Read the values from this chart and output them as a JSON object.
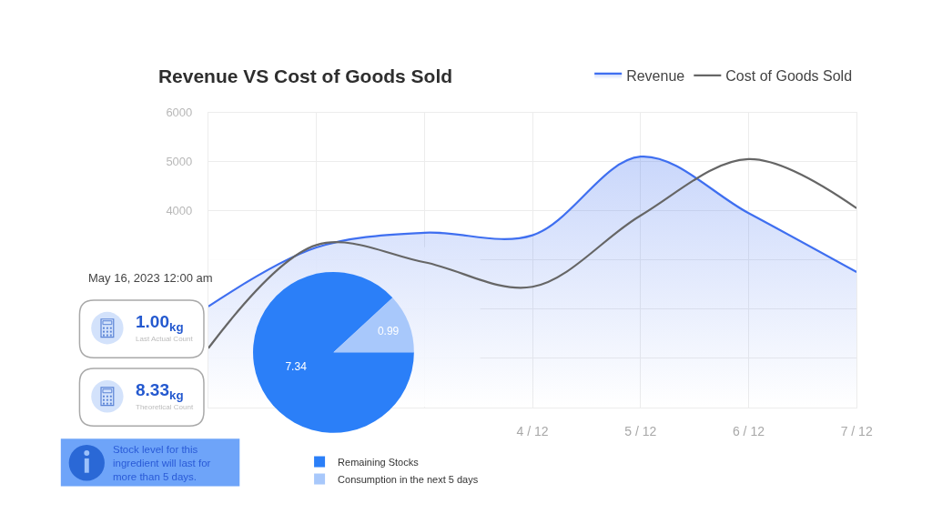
{
  "chart_data": [
    {
      "type": "line",
      "title": "Revenue VS Cost of Goods Sold",
      "categories": [
        null,
        null,
        null,
        "4 / 12",
        "5 / 12",
        "6 / 12",
        "7 / 12"
      ],
      "series": [
        {
          "name": "Revenue",
          "type": "area",
          "color": "#3f6ff0",
          "values": [
            2050,
            3250,
            3550,
            3500,
            5100,
            3950,
            2750
          ]
        },
        {
          "name": "Cost of Goods Sold",
          "type": "line",
          "color": "#666666",
          "values": [
            1200,
            3300,
            2950,
            2450,
            3900,
            5050,
            4050
          ]
        }
      ],
      "ylim": [
        0,
        6000
      ],
      "yticks": [
        {
          "value": 0,
          "label": null
        },
        {
          "value": 1000,
          "label": null
        },
        {
          "value": 2000,
          "label": null
        },
        {
          "value": 3000,
          "label": null
        },
        4000,
        5000,
        6000
      ],
      "grid": true,
      "legend": "top right"
    },
    {
      "type": "pie",
      "categories": [
        "Remaining Stocks",
        "Consumption in the next 5 days"
      ],
      "values": [
        7.34,
        0.99
      ],
      "colors": [
        "#2b7ff8",
        "#a8c8fb"
      ],
      "data_labels": true,
      "legend": "bottom"
    },
    {
      "type": "other",
      "title": "May 16, 2023 12:00 am",
      "annotations": [
        "1.00$_{kg}$",
        "Last Actual Count",
        "8.33$_{kg}$",
        "Theoretical Count",
        "Stock level for this ingredient will last for more than 5 days."
      ]
    }
  ]
}
